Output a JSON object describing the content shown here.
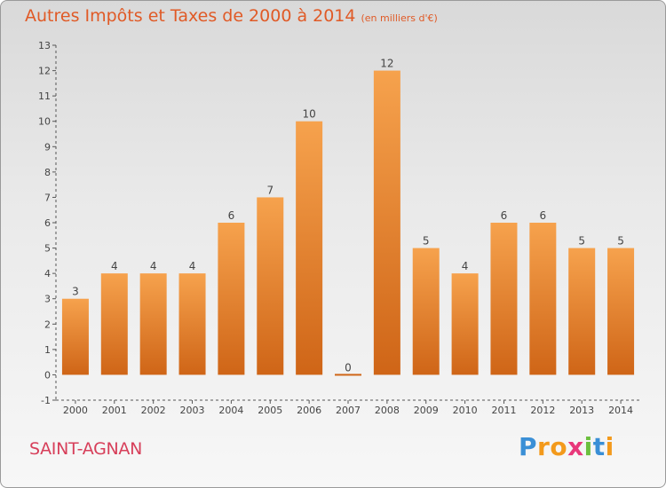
{
  "title": "Autres Impôts et Taxes de 2000 à 2014",
  "subtitle": "(en milliers d'€)",
  "commune": "SAINT-AGNAN",
  "logo": {
    "letters": [
      "P",
      "r",
      "o",
      "x",
      "i",
      "t",
      "i"
    ],
    "colors": [
      "#3a8fd6",
      "#f39a1c",
      "#f39a1c",
      "#e8387a",
      "#6cbf3e",
      "#3a8fd6",
      "#f39a1c"
    ]
  },
  "colors": {
    "bar_light": "#f6a24d",
    "bar_dark": "#cf6517",
    "title": "#e05a26",
    "commune": "#d73f5a"
  },
  "chart_data": {
    "type": "bar",
    "categories": [
      "2000",
      "2001",
      "2002",
      "2003",
      "2004",
      "2005",
      "2006",
      "2007",
      "2008",
      "2009",
      "2010",
      "2011",
      "2012",
      "2013",
      "2014"
    ],
    "values": [
      3,
      4,
      4,
      4,
      6,
      7,
      10,
      0,
      12,
      5,
      4,
      6,
      6,
      5,
      5
    ],
    "data_labels": [
      "3",
      "4",
      "4",
      "4",
      "6",
      "7",
      "10",
      "0",
      "12",
      "5",
      "4",
      "6",
      "6",
      "5",
      "5"
    ],
    "yticks": [
      -1,
      0,
      1,
      2,
      3,
      4,
      5,
      6,
      7,
      8,
      9,
      10,
      11,
      12,
      13
    ],
    "ylim": [
      -1,
      13
    ],
    "grid": false
  }
}
